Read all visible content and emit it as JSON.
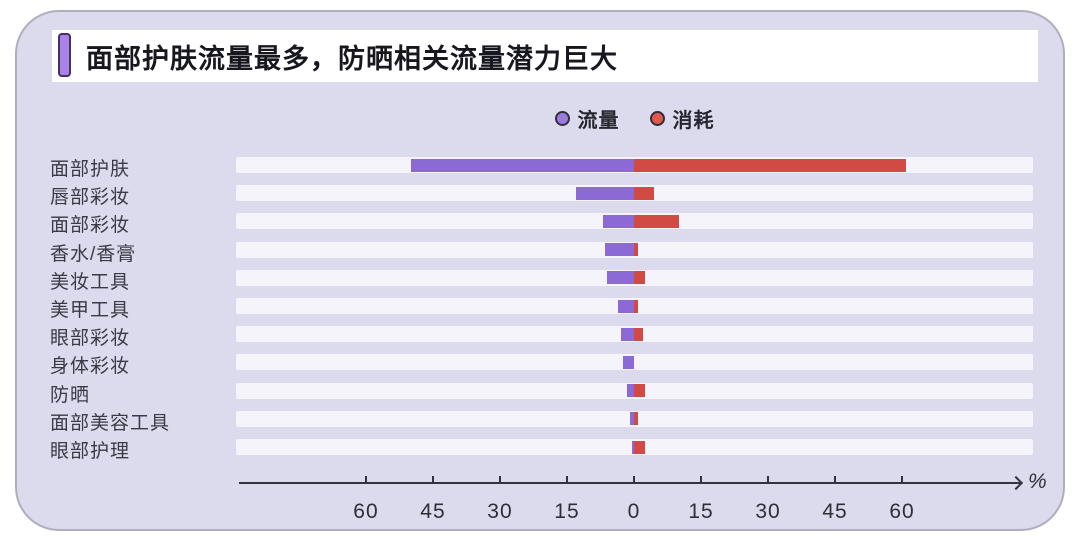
{
  "title": {
    "text": "面部护肤流量最多，防晒相关流量潜力巨大"
  },
  "legend": {
    "items": [
      {
        "label": "流量",
        "color": "#9C7BE0"
      },
      {
        "label": "消耗",
        "color": "#E0574C"
      }
    ]
  },
  "colors": {
    "flow_bar": "#8C6AD6",
    "consume_bar": "#D24A44",
    "track": "#F5F4FB",
    "axis": "#33333E",
    "card_background": "#DCDBEE",
    "title_marker": "#A982EA"
  },
  "axis": {
    "unit_label": "%",
    "tick_values": [
      -60,
      -45,
      -30,
      -15,
      0,
      15,
      30,
      45,
      60
    ],
    "tick_labels": [
      "60",
      "45",
      "30",
      "15",
      "0",
      "15",
      "30",
      "45",
      "60"
    ]
  },
  "chart_data": {
    "type": "bar",
    "orientation": "diverging-horizontal",
    "title": "面部护肤流量最多，防晒相关流量潜力巨大",
    "unit": "%",
    "categories": [
      "面部护肤",
      "唇部彩妆",
      "面部彩妆",
      "香水/香膏",
      "美妆工具",
      "美甲工具",
      "眼部彩妆",
      "身体彩妆",
      "防晒",
      "面部美容工具",
      "眼部护理"
    ],
    "series": [
      {
        "name": "流量",
        "side": "left",
        "color": "#8C6AD6",
        "values": [
          50,
          13,
          7,
          6.5,
          6,
          3.5,
          3,
          2.5,
          1.5,
          1,
          0.5
        ]
      },
      {
        "name": "消耗",
        "side": "right",
        "color": "#D24A44",
        "values": [
          61,
          4.5,
          10,
          1,
          2.5,
          1,
          2,
          0,
          2.5,
          1,
          2.5
        ]
      }
    ],
    "xlim": [
      -89,
      89
    ],
    "ticks": [
      60,
      45,
      30,
      15,
      0,
      15,
      30,
      45,
      60
    ],
    "legend_position": "top-center",
    "grid": false
  }
}
